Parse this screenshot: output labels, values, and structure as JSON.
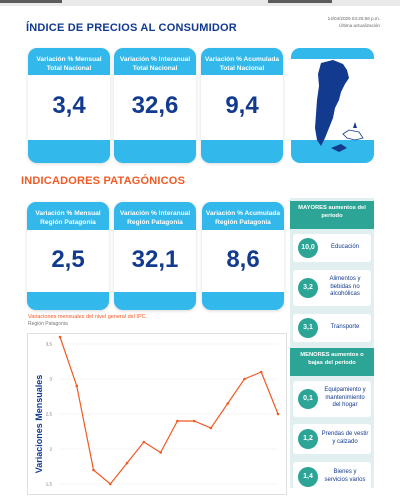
{
  "timestamp": {
    "line1": "14/04/2026 04:25:56 p.m.",
    "line2": "Última actualización"
  },
  "ipc_nacional": {
    "title": "ÍNDICE DE PRECIOS AL CONSUMIDOR",
    "cards": [
      {
        "line1": "Variación % Mensual",
        "line2": "Total Nacional",
        "value": "3,4"
      },
      {
        "line1": "Variación % Interanual",
        "line2": "Total Nacional",
        "value": "32,6"
      },
      {
        "line1": "Variación % Acumulada",
        "line2": "Total Nacional",
        "value": "9,4"
      }
    ]
  },
  "patagonicos": {
    "title": "INDICADORES PATAGÓNICOS",
    "cards": [
      {
        "line1": "Variación % Mensual",
        "line2": "Región Patagonia",
        "value": "2,5"
      },
      {
        "line1": "Variación % Interanual",
        "line2": "Región Patagonia",
        "value": "32,1"
      },
      {
        "line1": "Variación % Acumulada",
        "line2": "Región Patagonia",
        "value": "8,6"
      }
    ]
  },
  "mayores": {
    "header": "MAYORES aumentos del periodo",
    "items": [
      {
        "value": "10,0",
        "label": "Educación"
      },
      {
        "value": "3,2",
        "label": "Alimentos y bebidas no alcohólicas"
      },
      {
        "value": "3,1",
        "label": "Transporte"
      }
    ]
  },
  "menores": {
    "header": "MENORES aumentos o bajas del periodo",
    "items": [
      {
        "value": "0,1",
        "label": "Equipamiento y mantenimiento del hogar"
      },
      {
        "value": "1,2",
        "label": "Prendas de vestir y calzado"
      },
      {
        "value": "1,4",
        "label": "Bienes y servicios varios"
      }
    ]
  },
  "chart_title": "Variaciones mensuales del nivel general del IPC.",
  "chart_subtitle": "Región Patagonia",
  "colors": {
    "card_blue": "#32b8ea",
    "navy": "#123a8f",
    "orange": "#f05a24",
    "teal": "#2ca596"
  },
  "chart_data": {
    "type": "line",
    "ylabel": "Variaciones Mensuales",
    "yticks": [
      "3,5",
      "3",
      "2,5",
      "2",
      "1,5"
    ],
    "ylim": [
      1.5,
      3.7
    ],
    "values": [
      3.6,
      2.9,
      1.7,
      1.5,
      1.8,
      2.1,
      1.95,
      2.4,
      2.4,
      2.3,
      2.65,
      3.0,
      3.1,
      2.5
    ],
    "grid": true
  }
}
